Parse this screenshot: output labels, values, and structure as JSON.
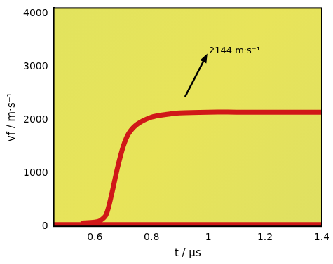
{
  "chart_data": {
    "type": "line",
    "x_label": "t / μs",
    "y_label": "vf / m·s⁻¹",
    "annotations": [
      {
        "text": "2144 m·s⁻¹"
      }
    ],
    "xlim": [
      0.455,
      1.4
    ],
    "xticks": [
      0.6,
      0.8,
      1,
      1.2,
      1.4
    ],
    "ylim": [
      0,
      4100
    ],
    "yticks": [
      0,
      1000,
      2000,
      3000,
      4000
    ],
    "grid": false,
    "series": [
      {
        "color": "#d01818",
        "x": [
          0.55,
          0.6,
          0.62,
          0.64,
          0.66,
          0.68,
          0.7,
          0.72,
          0.75,
          0.8,
          0.85,
          0.9,
          1.0,
          1.1,
          1.2,
          1.3,
          1.4
        ],
        "values": [
          60,
          80,
          110,
          220,
          620,
          1100,
          1500,
          1750,
          1920,
          2050,
          2100,
          2130,
          2144,
          2144,
          2144,
          2144,
          2144
        ]
      },
      {
        "color": "#d01818",
        "x": [
          0.455,
          1.4
        ],
        "values": [
          40,
          40
        ]
      }
    ]
  }
}
